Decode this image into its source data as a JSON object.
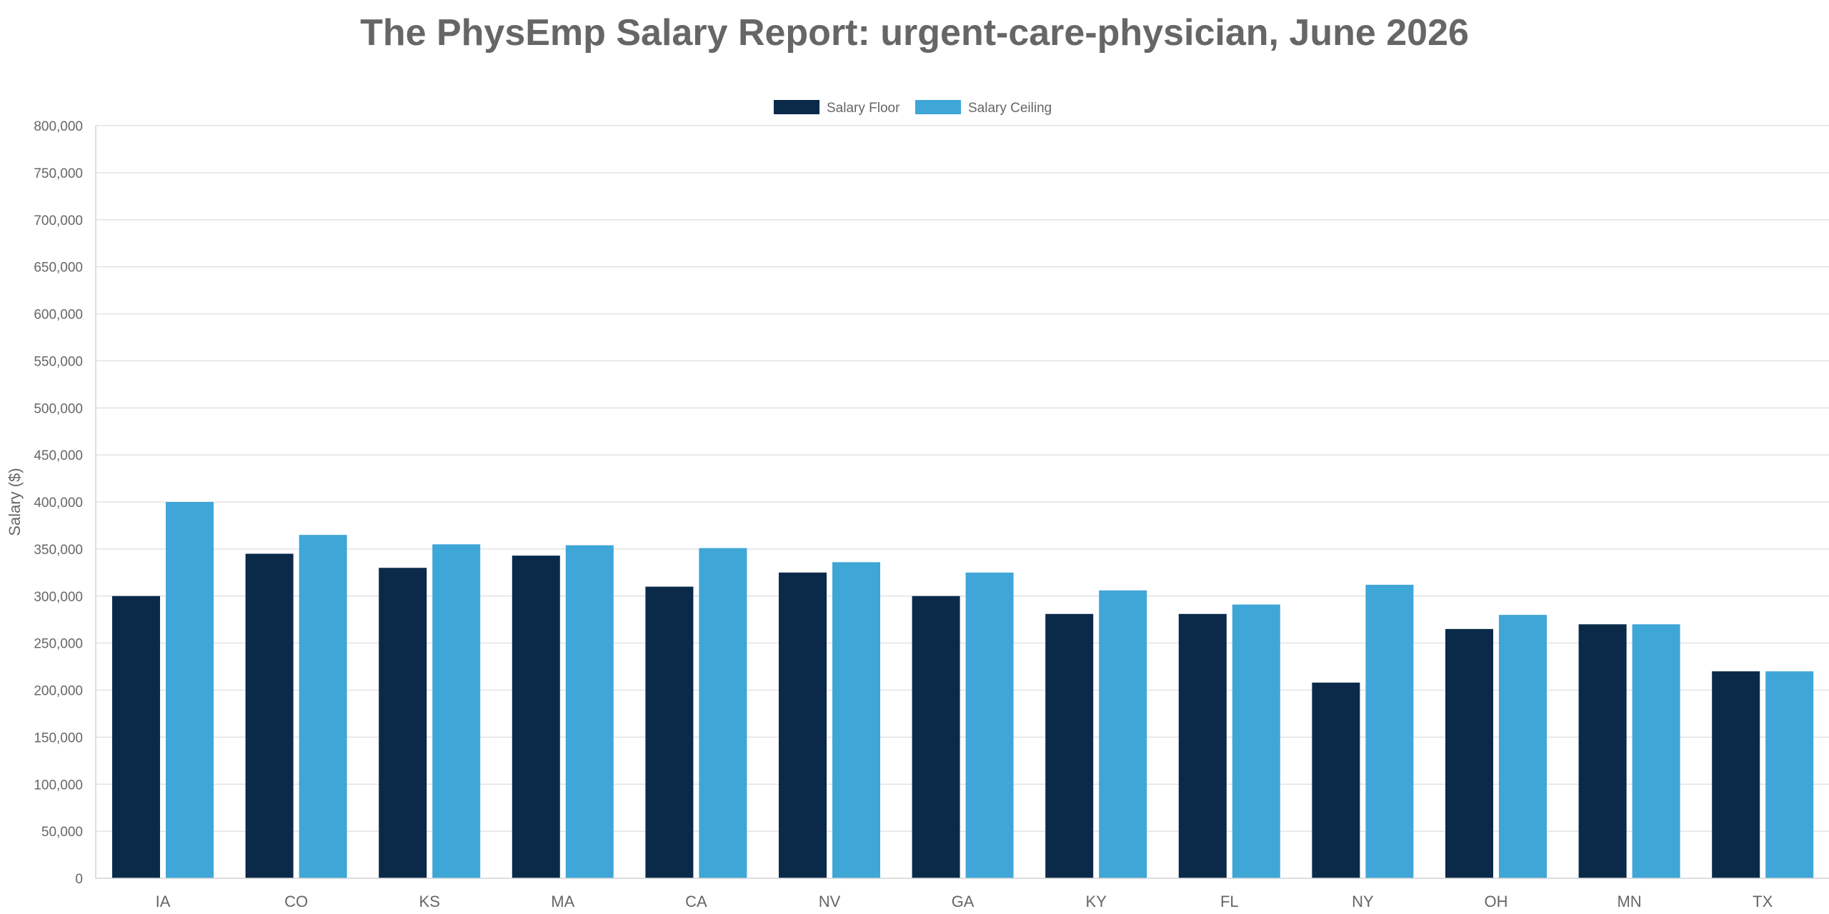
{
  "chart_data": {
    "type": "bar",
    "title": "The PhysEmp Salary Report: urgent-care-physician, June 2026",
    "ylabel": "Salary ($)",
    "ylim": [
      0,
      800000
    ],
    "yticks": [
      0,
      50000,
      100000,
      150000,
      200000,
      250000,
      300000,
      350000,
      400000,
      450000,
      500000,
      550000,
      600000,
      650000,
      700000,
      750000,
      800000
    ],
    "ytick_labels": [
      "0",
      "50,000",
      "100,000",
      "150,000",
      "200,000",
      "250,000",
      "300,000",
      "350,000",
      "400,000",
      "450,000",
      "500,000",
      "550,000",
      "600,000",
      "650,000",
      "700,000",
      "750,000",
      "800,000"
    ],
    "grid": true,
    "legend_position": "top-center",
    "categories": [
      "IA",
      "CO",
      "KS",
      "MA",
      "CA",
      "NV",
      "GA",
      "KY",
      "FL",
      "NY",
      "OH",
      "MN",
      "TX"
    ],
    "series": [
      {
        "name": "Salary Floor",
        "color": "#0b2a4a",
        "values": [
          300000,
          345000,
          330000,
          343000,
          310000,
          325000,
          300000,
          281000,
          281000,
          208000,
          265000,
          270000,
          220000
        ]
      },
      {
        "name": "Salary Ceiling",
        "color": "#3fa6d8",
        "values": [
          400000,
          365000,
          355000,
          354000,
          351000,
          336000,
          325000,
          306000,
          291000,
          312000,
          280000,
          270000,
          220000
        ]
      }
    ]
  }
}
